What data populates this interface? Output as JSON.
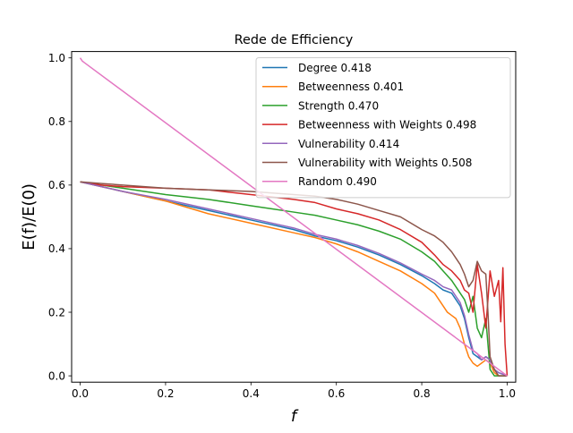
{
  "chart_data": {
    "type": "line",
    "title": "Rede de Efficiency",
    "xlabel": "f",
    "ylabel": "E(f)/E(0)",
    "xlim": [
      -0.02,
      1.02
    ],
    "ylim": [
      -0.02,
      1.02
    ],
    "xticks": [
      0.0,
      0.2,
      0.4,
      0.6,
      0.8,
      1.0
    ],
    "yticks": [
      0.0,
      0.2,
      0.4,
      0.6,
      0.8,
      1.0
    ],
    "tick_labels_x": [
      "0.0",
      "0.2",
      "0.4",
      "0.6",
      "0.8",
      "1.0"
    ],
    "tick_labels_y": [
      "0.0",
      "0.2",
      "0.4",
      "0.6",
      "0.8",
      "1.0"
    ],
    "grid": false,
    "legend_position": "top-right",
    "series": [
      {
        "name": "Degree 0.418",
        "color": "#1f77b4",
        "x": [
          0.0,
          0.05,
          0.1,
          0.2,
          0.3,
          0.4,
          0.5,
          0.55,
          0.6,
          0.65,
          0.7,
          0.75,
          0.8,
          0.83,
          0.85,
          0.87,
          0.88,
          0.89,
          0.9,
          0.91,
          0.92,
          0.93,
          0.94,
          0.95,
          0.96,
          0.97,
          0.98,
          1.0
        ],
        "y": [
          0.61,
          0.595,
          0.58,
          0.55,
          0.52,
          0.49,
          0.46,
          0.44,
          0.425,
          0.405,
          0.38,
          0.35,
          0.315,
          0.29,
          0.27,
          0.26,
          0.24,
          0.22,
          0.18,
          0.12,
          0.07,
          0.06,
          0.05,
          0.06,
          0.05,
          0.02,
          0.01,
          0.0
        ]
      },
      {
        "name": "Betweenness 0.401",
        "color": "#ff7f0e",
        "x": [
          0.0,
          0.05,
          0.1,
          0.2,
          0.3,
          0.4,
          0.5,
          0.55,
          0.6,
          0.65,
          0.7,
          0.75,
          0.8,
          0.83,
          0.84,
          0.85,
          0.86,
          0.87,
          0.88,
          0.89,
          0.9,
          0.91,
          0.92,
          0.93,
          0.94,
          0.95,
          0.96,
          0.97,
          0.98,
          1.0
        ],
        "y": [
          0.61,
          0.595,
          0.58,
          0.55,
          0.51,
          0.48,
          0.45,
          0.435,
          0.415,
          0.39,
          0.36,
          0.33,
          0.29,
          0.26,
          0.24,
          0.22,
          0.2,
          0.19,
          0.18,
          0.15,
          0.1,
          0.06,
          0.04,
          0.03,
          0.04,
          0.05,
          0.04,
          0.01,
          0.0,
          0.0
        ]
      },
      {
        "name": "Strength 0.470",
        "color": "#2ca02c",
        "x": [
          0.0,
          0.05,
          0.1,
          0.2,
          0.3,
          0.4,
          0.45,
          0.5,
          0.55,
          0.6,
          0.65,
          0.7,
          0.75,
          0.8,
          0.83,
          0.85,
          0.87,
          0.88,
          0.89,
          0.9,
          0.91,
          0.92,
          0.93,
          0.94,
          0.95,
          0.96,
          0.97,
          0.98,
          1.0
        ],
        "y": [
          0.61,
          0.6,
          0.59,
          0.57,
          0.555,
          0.535,
          0.525,
          0.515,
          0.505,
          0.49,
          0.475,
          0.455,
          0.43,
          0.39,
          0.36,
          0.33,
          0.3,
          0.28,
          0.26,
          0.24,
          0.2,
          0.25,
          0.15,
          0.12,
          0.18,
          0.02,
          0.0,
          0.0,
          0.0
        ]
      },
      {
        "name": "Betweenness with Weights 0.498",
        "color": "#d62728",
        "x": [
          0.0,
          0.05,
          0.1,
          0.2,
          0.3,
          0.4,
          0.5,
          0.55,
          0.6,
          0.65,
          0.7,
          0.75,
          0.8,
          0.83,
          0.85,
          0.87,
          0.89,
          0.9,
          0.91,
          0.92,
          0.93,
          0.94,
          0.95,
          0.96,
          0.97,
          0.98,
          0.985,
          0.99,
          0.995,
          1.0
        ],
        "y": [
          0.61,
          0.6,
          0.595,
          0.59,
          0.585,
          0.57,
          0.555,
          0.545,
          0.525,
          0.51,
          0.49,
          0.46,
          0.42,
          0.38,
          0.35,
          0.33,
          0.3,
          0.27,
          0.26,
          0.2,
          0.35,
          0.26,
          0.15,
          0.33,
          0.25,
          0.3,
          0.17,
          0.34,
          0.1,
          0.0
        ]
      },
      {
        "name": "Vulnerability 0.414",
        "color": "#9467bd",
        "x": [
          0.0,
          0.05,
          0.1,
          0.2,
          0.3,
          0.4,
          0.5,
          0.55,
          0.6,
          0.65,
          0.7,
          0.75,
          0.8,
          0.83,
          0.85,
          0.87,
          0.88,
          0.89,
          0.9,
          0.91,
          0.92,
          0.93,
          0.94,
          0.95,
          0.96,
          0.97,
          0.98,
          1.0
        ],
        "y": [
          0.61,
          0.595,
          0.58,
          0.555,
          0.525,
          0.495,
          0.465,
          0.445,
          0.43,
          0.41,
          0.385,
          0.355,
          0.32,
          0.3,
          0.28,
          0.27,
          0.25,
          0.23,
          0.19,
          0.13,
          0.08,
          0.07,
          0.05,
          0.06,
          0.05,
          0.02,
          0.01,
          0.0
        ]
      },
      {
        "name": "Vulnerability with Weights 0.508",
        "color": "#8c564b",
        "x": [
          0.0,
          0.05,
          0.1,
          0.2,
          0.3,
          0.4,
          0.45,
          0.5,
          0.55,
          0.6,
          0.65,
          0.7,
          0.75,
          0.8,
          0.83,
          0.85,
          0.87,
          0.88,
          0.89,
          0.9,
          0.91,
          0.92,
          0.93,
          0.94,
          0.95,
          0.955,
          0.96,
          0.97,
          0.98,
          1.0
        ],
        "y": [
          0.61,
          0.605,
          0.6,
          0.59,
          0.585,
          0.58,
          0.575,
          0.57,
          0.565,
          0.555,
          0.54,
          0.52,
          0.5,
          0.46,
          0.44,
          0.42,
          0.39,
          0.37,
          0.35,
          0.32,
          0.28,
          0.3,
          0.36,
          0.33,
          0.32,
          0.2,
          0.06,
          0.02,
          0.0,
          0.0
        ]
      },
      {
        "name": "Random 0.490",
        "color": "#e377c2",
        "x": [
          0.0,
          0.005,
          0.01,
          1.0
        ],
        "y": [
          1.0,
          0.99,
          0.985,
          0.0
        ]
      }
    ]
  }
}
